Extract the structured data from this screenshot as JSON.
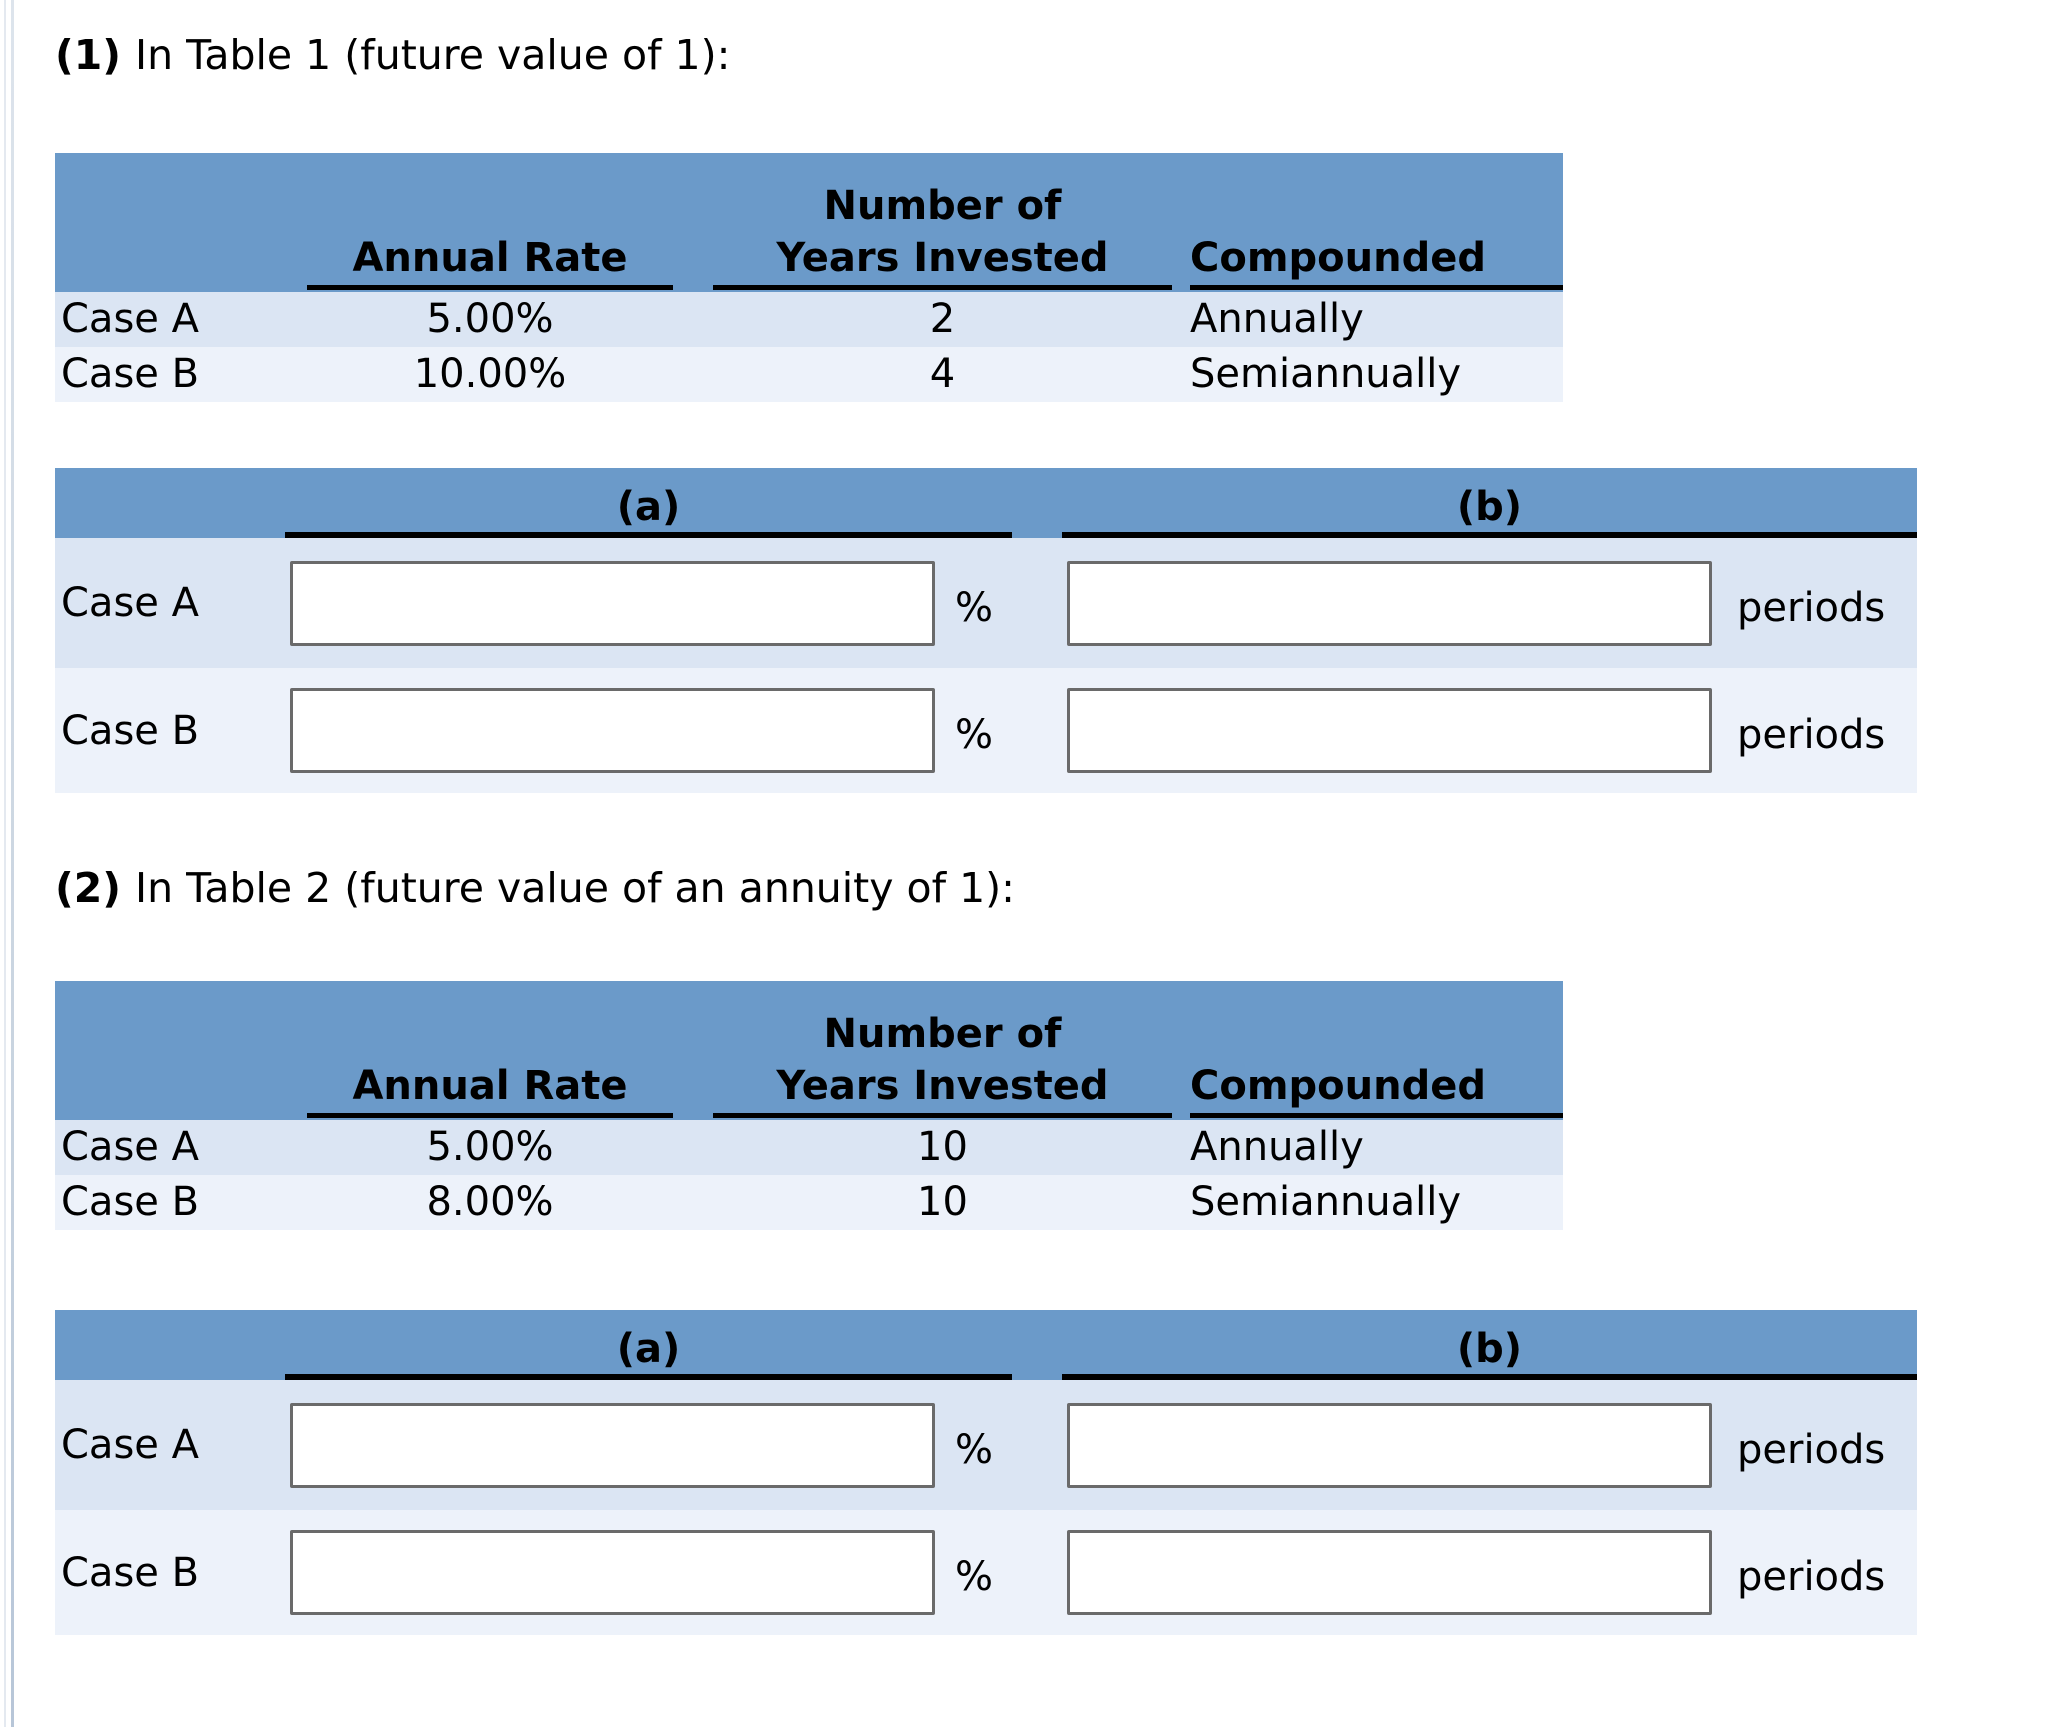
{
  "colors": {
    "table_header_bg": "#6b9ac9",
    "row_a_bg": "#dbe5f3",
    "row_b_bg": "#edf2fa",
    "underline": "#000000",
    "input_border": "#6a6a6a"
  },
  "sections": [
    {
      "heading_prefix": "(1)",
      "heading_suffix": "In Table 1 (future value of 1):",
      "info_table": {
        "col_rate_label": "Annual Rate",
        "col_years_line1": "Number of",
        "col_years_line2": "Years Invested",
        "col_comp_label": "Compounded",
        "rows": [
          {
            "label": "Case A",
            "annual_rate": "5.00%",
            "years_invested": "2",
            "compounded": "Annually"
          },
          {
            "label": "Case B",
            "annual_rate": "10.00%",
            "years_invested": "4",
            "compounded": "Semiannually"
          }
        ]
      },
      "answer_table": {
        "col_a_label": "(a)",
        "col_b_label": "(b)",
        "unit_a": "%",
        "unit_b": "periods",
        "rows": [
          {
            "label": "Case A",
            "a_value": "",
            "b_value": ""
          },
          {
            "label": "Case B",
            "a_value": "",
            "b_value": ""
          }
        ]
      }
    },
    {
      "heading_prefix": "(2)",
      "heading_suffix": "In Table 2 (future value of an annuity of 1):",
      "info_table": {
        "col_rate_label": "Annual Rate",
        "col_years_line1": "Number of",
        "col_years_line2": "Years Invested",
        "col_comp_label": "Compounded",
        "rows": [
          {
            "label": "Case A",
            "annual_rate": "5.00%",
            "years_invested": "10",
            "compounded": "Annually"
          },
          {
            "label": "Case B",
            "annual_rate": "8.00%",
            "years_invested": "10",
            "compounded": "Semiannually"
          }
        ]
      },
      "answer_table": {
        "col_a_label": "(a)",
        "col_b_label": "(b)",
        "unit_a": "%",
        "unit_b": "periods",
        "rows": [
          {
            "label": "Case A",
            "a_value": "",
            "b_value": ""
          },
          {
            "label": "Case B",
            "a_value": "",
            "b_value": ""
          }
        ]
      }
    }
  ]
}
